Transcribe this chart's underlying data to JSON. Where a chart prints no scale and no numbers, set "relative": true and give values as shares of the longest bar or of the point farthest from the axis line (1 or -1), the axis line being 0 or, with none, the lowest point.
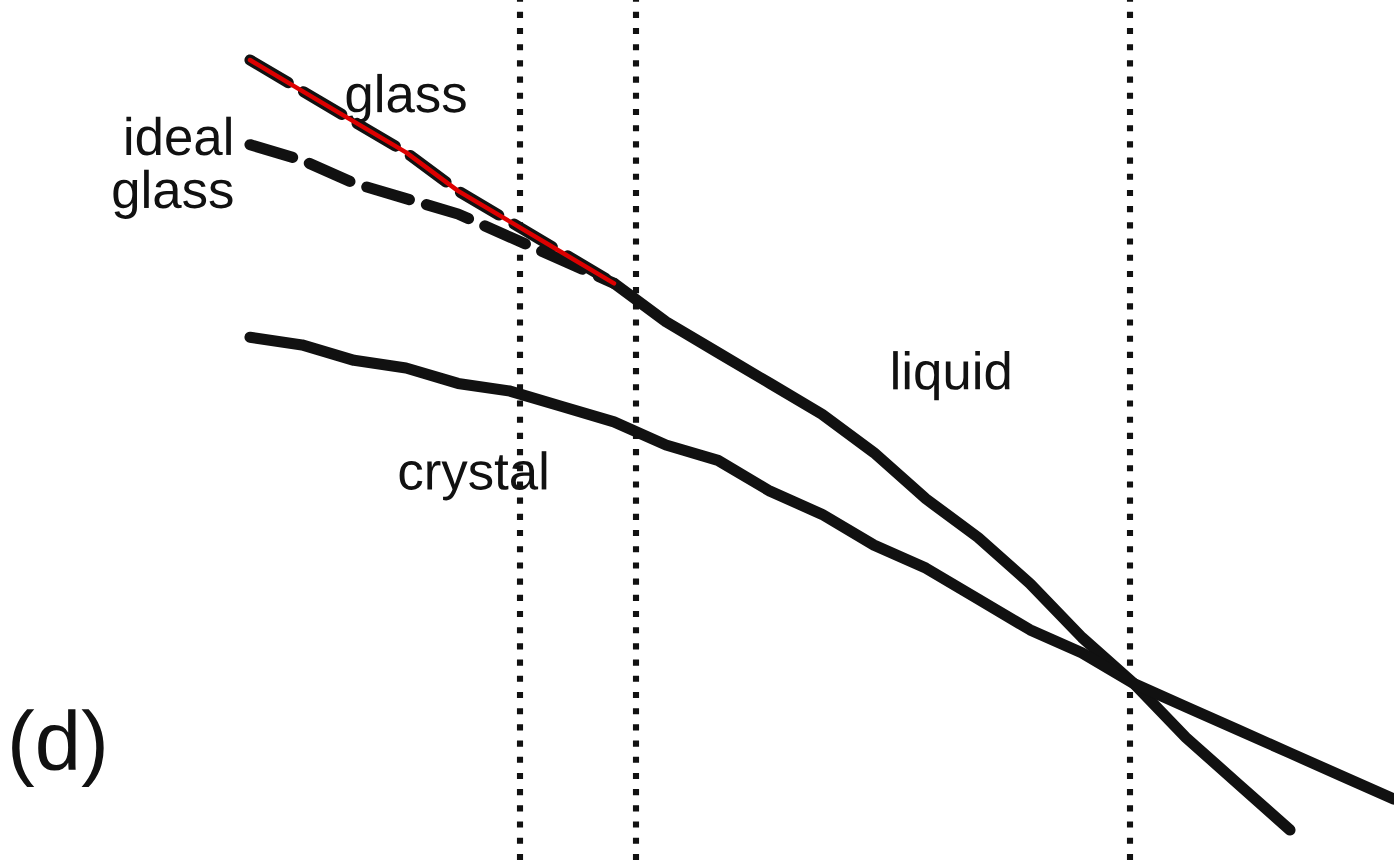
{
  "chart_data": {
    "type": "line",
    "relative": true,
    "categories": [
      null,
      null,
      null,
      null,
      null,
      null,
      null,
      null,
      null,
      null,
      null,
      null,
      null,
      null,
      null,
      null,
      null,
      null,
      null,
      null,
      null,
      null,
      null
    ],
    "series": [
      {
        "name": "liquid",
        "color": "#111111",
        "line_style": "solid",
        "values": [
          null,
          null,
          null,
          null,
          null,
          null,
          null,
          0.71,
          0.66,
          0.62,
          0.58,
          0.54,
          0.49,
          0.43,
          0.38,
          0.32,
          0.25,
          0.19,
          0.12,
          0.06,
          0,
          null,
          null
        ]
      },
      {
        "name": "glass",
        "color": "#111111",
        "line_style": "dashed",
        "values": [
          1.0,
          0.96,
          0.92,
          0.88,
          0.83,
          0.79,
          0.75,
          0.71,
          null,
          null,
          null,
          null,
          null,
          null,
          null,
          null,
          null,
          null,
          null,
          null,
          null,
          null,
          null
        ]
      },
      {
        "name": "ideal\nglass",
        "color": "#111111",
        "line_style": "dashed",
        "values": [
          0.89,
          0.87,
          0.84,
          0.82,
          0.8,
          0.77,
          0.74,
          0.71,
          null,
          null,
          null,
          null,
          null,
          null,
          null,
          null,
          null,
          null,
          null,
          null,
          null,
          null,
          null
        ]
      },
      {
        "name": "crystal",
        "color": "#111111",
        "line_style": "solid",
        "values": [
          0.64,
          0.63,
          0.61,
          0.6,
          0.58,
          0.57,
          0.55,
          0.53,
          0.5,
          0.48,
          0.44,
          0.41,
          0.37,
          0.34,
          0.3,
          0.26,
          0.23,
          0.19,
          0.16,
          0.13,
          0.1,
          0.07,
          0.04
        ]
      },
      {
        "color": "#dd0000",
        "line_style": "solid",
        "values": [
          1.0,
          0.96,
          0.92,
          0.88,
          0.83,
          0.79,
          0.75,
          0.71,
          null,
          null,
          null,
          null,
          null,
          null,
          null,
          null,
          null,
          null,
          null,
          null,
          null,
          null,
          null
        ]
      }
    ],
    "annotations": [
      "(d)"
    ]
  }
}
